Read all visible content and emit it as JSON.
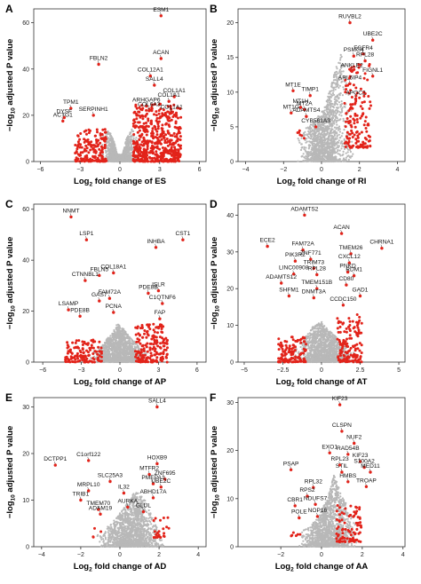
{
  "figure": {
    "shared_ylabel_prefix": "−log",
    "shared_ylabel_sub": "10",
    "shared_ylabel_suffix": " adjusted P value"
  },
  "chart_data": [
    {
      "type": "scatter",
      "panel_letter": "A",
      "xlabel_prefix": "Log",
      "xlabel_sub": "2",
      "xlabel_suffix": " fold change of ES",
      "xlim": [
        -6.5,
        6.5
      ],
      "ylim": [
        0,
        66
      ],
      "xticks": [
        -6,
        -3,
        0,
        3,
        6
      ],
      "yticks": [
        0,
        20,
        40,
        60
      ],
      "grey_cloud": [
        [
          -1.6,
          9
        ],
        [
          -0.9,
          14
        ],
        [
          -0.5,
          10
        ],
        [
          -0.2,
          3
        ],
        [
          0.2,
          3
        ],
        [
          0.5,
          10
        ],
        [
          0.9,
          14
        ],
        [
          1.6,
          9
        ]
      ],
      "red_regions": [
        {
          "x": [
            -3.4,
            -1.0
          ],
          "y": [
            0,
            14
          ],
          "n": 170
        },
        {
          "x": [
            1.0,
            4.6
          ],
          "y": [
            0,
            25
          ],
          "n": 520
        }
      ],
      "labels": [
        {
          "text": "ESM1",
          "x": 3.1,
          "y": 63
        },
        {
          "text": "ACAN",
          "x": 3.1,
          "y": 44.5
        },
        {
          "text": "FBLN2",
          "x": -1.6,
          "y": 42
        },
        {
          "text": "COL12A1",
          "x": 2.3,
          "y": 37
        },
        {
          "text": "SALL4",
          "x": 2.6,
          "y": 33
        },
        {
          "text": "COL1A1",
          "x": 4.1,
          "y": 28
        },
        {
          "text": "COL1A1",
          "x": 3.7,
          "y": 26
        },
        {
          "text": "ARHGAP6",
          "x": 2.0,
          "y": 24
        },
        {
          "text": "TPM1",
          "x": -3.7,
          "y": 23
        },
        {
          "text": "COL6A3",
          "x": 2.2,
          "y": 22
        },
        {
          "text": "COL1A1",
          "x": 3.9,
          "y": 21
        },
        {
          "text": "SERPINH1",
          "x": -2.0,
          "y": 20
        },
        {
          "text": "DYSF",
          "x": -4.2,
          "y": 19
        },
        {
          "text": "ACTG1",
          "x": -4.3,
          "y": 17.5
        }
      ]
    },
    {
      "type": "scatter",
      "panel_letter": "B",
      "xlabel_prefix": "Log",
      "xlabel_sub": "2",
      "xlabel_suffix": " fold change of RI",
      "xlim": [
        -4.4,
        4.4
      ],
      "ylim": [
        0,
        22
      ],
      "xticks": [
        -4,
        -2,
        0,
        2,
        4
      ],
      "yticks": [
        0,
        5,
        10,
        15,
        20
      ],
      "grey_cloud": [
        [
          -1.4,
          3
        ],
        [
          -0.8,
          5
        ],
        [
          -0.3,
          6
        ],
        [
          0.2,
          8
        ],
        [
          0.6,
          12
        ],
        [
          1.0,
          16
        ],
        [
          1.4,
          12
        ],
        [
          1.8,
          6
        ]
      ],
      "red_regions": [
        {
          "x": [
            1.2,
            2.6
          ],
          "y": [
            2,
            14
          ],
          "n": 150
        },
        {
          "x": [
            -1.4,
            -0.9
          ],
          "y": [
            3,
            4.5
          ],
          "n": 6
        }
      ],
      "labels": [
        {
          "text": "RUVBL2",
          "x": 1.5,
          "y": 20
        },
        {
          "text": "UBE2C",
          "x": 2.7,
          "y": 17.5
        },
        {
          "text": "FGFR4",
          "x": 2.2,
          "y": 15.5
        },
        {
          "text": "PSMG4",
          "x": 1.7,
          "y": 15.2
        },
        {
          "text": "RPL28",
          "x": 2.3,
          "y": 14.5
        },
        {
          "text": "ANKLE2",
          "x": 1.6,
          "y": 13
        },
        {
          "text": "FIGNL1",
          "x": 2.7,
          "y": 12.3
        },
        {
          "text": "ARL6IP4",
          "x": 1.5,
          "y": 11.2
        },
        {
          "text": "MT1E",
          "x": -1.5,
          "y": 10.2
        },
        {
          "text": "TIMP1",
          "x": -0.6,
          "y": 9.5
        },
        {
          "text": "APOC2",
          "x": 1.8,
          "y": 9
        },
        {
          "text": "MT1H",
          "x": -1.1,
          "y": 7.8
        },
        {
          "text": "MT2A",
          "x": -0.9,
          "y": 7.5
        },
        {
          "text": "MT1G",
          "x": -1.6,
          "y": 7
        },
        {
          "text": "ADAMTS4",
          "x": -0.8,
          "y": 6.5
        },
        {
          "text": "CYB561A3",
          "x": -0.3,
          "y": 5
        }
      ]
    },
    {
      "type": "scatter",
      "panel_letter": "C",
      "xlabel_prefix": "Log",
      "xlabel_sub": "2",
      "xlabel_suffix": " fold change of AP",
      "xlim": [
        -6.7,
        6.7
      ],
      "ylim": [
        0,
        62
      ],
      "xticks": [
        -6,
        -3,
        0,
        3,
        6
      ],
      "yticks": [
        0,
        20,
        40,
        60
      ],
      "grey_cloud": [
        [
          -2.5,
          3
        ],
        [
          -1.5,
          6
        ],
        [
          -0.7,
          11
        ],
        [
          -0.2,
          15
        ],
        [
          0.3,
          13
        ],
        [
          0.8,
          10
        ],
        [
          1.5,
          6
        ],
        [
          2.5,
          3
        ]
      ],
      "red_regions": [
        {
          "x": [
            -4.3,
            -1.4
          ],
          "y": [
            0,
            9
          ],
          "n": 120
        },
        {
          "x": [
            1.2,
            3.7
          ],
          "y": [
            0,
            15
          ],
          "n": 180
        }
      ],
      "labels": [
        {
          "text": "NNMT",
          "x": -3.8,
          "y": 57
        },
        {
          "text": "LSP1",
          "x": -2.6,
          "y": 48
        },
        {
          "text": "INHBA",
          "x": 2.8,
          "y": 45
        },
        {
          "text": "CST1",
          "x": 4.9,
          "y": 48
        },
        {
          "text": "COL18A1",
          "x": -0.5,
          "y": 35
        },
        {
          "text": "FBLN5",
          "x": -1.6,
          "y": 34
        },
        {
          "text": "CTNNBL1",
          "x": -2.7,
          "y": 32
        },
        {
          "text": "ISLR",
          "x": 3.0,
          "y": 28
        },
        {
          "text": "PDE8B",
          "x": 2.2,
          "y": 27
        },
        {
          "text": "FAM72A",
          "x": -0.8,
          "y": 25
        },
        {
          "text": "GAS7",
          "x": -1.6,
          "y": 24
        },
        {
          "text": "C1QTNF6",
          "x": 3.3,
          "y": 23
        },
        {
          "text": "LSAMP",
          "x": -4.0,
          "y": 20.5
        },
        {
          "text": "PCNA",
          "x": -0.5,
          "y": 19.5
        },
        {
          "text": "PDE8B",
          "x": -3.1,
          "y": 18
        },
        {
          "text": "FAP",
          "x": 3.1,
          "y": 17
        }
      ]
    },
    {
      "type": "scatter",
      "panel_letter": "D",
      "xlabel_prefix": "Log",
      "xlabel_sub": "2",
      "xlabel_suffix": " fold change of AT",
      "xlim": [
        -5.4,
        5.4
      ],
      "ylim": [
        0,
        43
      ],
      "xticks": [
        -5.0,
        -2.5,
        0.0,
        2.5,
        5.0
      ],
      "ytick_labels": [
        "0",
        "10",
        "20",
        "30",
        "40"
      ],
      "yticks": [
        0,
        10,
        20,
        30,
        40
      ],
      "grey_cloud": [
        [
          -2.0,
          3
        ],
        [
          -1.2,
          6
        ],
        [
          -0.5,
          10
        ],
        [
          0.0,
          11
        ],
        [
          0.4,
          9
        ],
        [
          0.9,
          7
        ],
        [
          1.6,
          4
        ],
        [
          2.3,
          2
        ]
      ],
      "red_regions": [
        {
          "x": [
            -2.8,
            -1.0
          ],
          "y": [
            0,
            7
          ],
          "n": 120
        },
        {
          "x": [
            1.0,
            2.6
          ],
          "y": [
            0,
            13
          ],
          "n": 140
        }
      ],
      "labels": [
        {
          "text": "ADAMTS2",
          "x": -1.1,
          "y": 40
        },
        {
          "text": "ACAN",
          "x": 1.3,
          "y": 35
        },
        {
          "text": "CHRNA1",
          "x": 3.9,
          "y": 31
        },
        {
          "text": "ECE2",
          "x": -3.5,
          "y": 31.5
        },
        {
          "text": "FAM72A",
          "x": -1.2,
          "y": 30.5
        },
        {
          "text": "TMEM26",
          "x": 1.9,
          "y": 29.5
        },
        {
          "text": "PIK3R2",
          "x": -1.7,
          "y": 27.5
        },
        {
          "text": "ZNF771",
          "x": -0.7,
          "y": 28
        },
        {
          "text": "CXCL12",
          "x": 1.8,
          "y": 27
        },
        {
          "text": "TRIM73",
          "x": -0.5,
          "y": 25.5
        },
        {
          "text": "PNKD",
          "x": 1.7,
          "y": 24.5
        },
        {
          "text": "LINC00908",
          "x": -1.8,
          "y": 24
        },
        {
          "text": "RPL28",
          "x": -0.3,
          "y": 23.8
        },
        {
          "text": "RDM1",
          "x": 2.1,
          "y": 23.5
        },
        {
          "text": "ADAMTS12",
          "x": -2.6,
          "y": 21.5
        },
        {
          "text": "TMEM151B",
          "x": -0.3,
          "y": 20
        },
        {
          "text": "CD80",
          "x": 1.6,
          "y": 21
        },
        {
          "text": "SHFM1",
          "x": -2.1,
          "y": 18
        },
        {
          "text": "DNMT3A",
          "x": -0.5,
          "y": 17.5
        },
        {
          "text": "GAD1",
          "x": 2.5,
          "y": 18
        },
        {
          "text": "CCDC150",
          "x": 1.4,
          "y": 15.5
        }
      ]
    },
    {
      "type": "scatter",
      "panel_letter": "E",
      "xlabel_prefix": "Log",
      "xlabel_sub": "2",
      "xlabel_suffix": " fold change of AD",
      "xlim": [
        -4.4,
        4.4
      ],
      "ylim": [
        0,
        32
      ],
      "xticks": [
        -4,
        -2,
        0,
        2,
        4
      ],
      "yticks": [
        0,
        10,
        20,
        30
      ],
      "grey_cloud": [
        [
          -1.3,
          2
        ],
        [
          -0.7,
          4
        ],
        [
          -0.2,
          6
        ],
        [
          0.3,
          9
        ],
        [
          0.8,
          12
        ],
        [
          1.3,
          10
        ],
        [
          1.8,
          5
        ],
        [
          2.4,
          2
        ]
      ],
      "red_regions": [
        {
          "x": [
            1.7,
            2.5
          ],
          "y": [
            2,
            7
          ],
          "n": 22
        },
        {
          "x": [
            -1.4,
            -0.8
          ],
          "y": [
            2,
            4
          ],
          "n": 4
        }
      ],
      "labels": [
        {
          "text": "SALL4",
          "x": 1.9,
          "y": 30
        },
        {
          "text": "HOXB9",
          "x": 1.9,
          "y": 17.8
        },
        {
          "text": "DCTPP1",
          "x": -3.3,
          "y": 17.5
        },
        {
          "text": "C1orf122",
          "x": -1.6,
          "y": 18.5
        },
        {
          "text": "MTFR2",
          "x": 1.5,
          "y": 15.5
        },
        {
          "text": "ZNF695",
          "x": 2.3,
          "y": 14.5
        },
        {
          "text": "SLC25A3",
          "x": -0.5,
          "y": 14
        },
        {
          "text": "PMEPA1",
          "x": 1.7,
          "y": 13.5
        },
        {
          "text": "UBE2C",
          "x": 2.1,
          "y": 12.8
        },
        {
          "text": "MRPL10",
          "x": -1.6,
          "y": 12
        },
        {
          "text": "IL32",
          "x": 0.2,
          "y": 11.5
        },
        {
          "text": "ABHD17A",
          "x": 1.7,
          "y": 10.5
        },
        {
          "text": "TRIB1",
          "x": -2.0,
          "y": 10
        },
        {
          "text": "AURKA",
          "x": 0.4,
          "y": 8.5
        },
        {
          "text": "TMEM70",
          "x": -1.1,
          "y": 8
        },
        {
          "text": "GLUL",
          "x": 1.2,
          "y": 7.5
        },
        {
          "text": "ADAM19",
          "x": -1.0,
          "y": 7
        }
      ]
    },
    {
      "type": "scatter",
      "panel_letter": "F",
      "xlabel_prefix": "Log",
      "xlabel_sub": "2",
      "xlabel_suffix": " fold change of AA",
      "xlim": [
        -4.1,
        4.1
      ],
      "ylim": [
        0,
        31
      ],
      "xticks": [
        -2,
        0,
        2,
        4
      ],
      "yticks": [
        0,
        10,
        20,
        30
      ],
      "grey_cloud": [
        [
          -1.3,
          2
        ],
        [
          -0.7,
          4
        ],
        [
          -0.2,
          6
        ],
        [
          0.3,
          10
        ],
        [
          0.6,
          15
        ],
        [
          0.9,
          12
        ],
        [
          1.4,
          7
        ],
        [
          2.0,
          3
        ]
      ],
      "red_regions": [
        {
          "x": [
            0.7,
            2.0
          ],
          "y": [
            1,
            9
          ],
          "n": 90
        },
        {
          "x": [
            -1.6,
            -1.0
          ],
          "y": [
            2,
            4
          ],
          "n": 6
        }
      ],
      "labels": [
        {
          "text": "KIF23",
          "x": 0.9,
          "y": 29.5
        },
        {
          "text": "CLSPN",
          "x": 1.0,
          "y": 24
        },
        {
          "text": "NUF2",
          "x": 1.6,
          "y": 21.5
        },
        {
          "text": "EXO1",
          "x": 0.4,
          "y": 19.5
        },
        {
          "text": "RAD54B",
          "x": 1.3,
          "y": 19.2
        },
        {
          "text": "KIF23",
          "x": 1.9,
          "y": 17.7
        },
        {
          "text": "STIL",
          "x": 1.0,
          "y": 15.5
        },
        {
          "text": "RPL23",
          "x": 0.9,
          "y": 17
        },
        {
          "text": "S100A2",
          "x": 2.1,
          "y": 16.5
        },
        {
          "text": "MED11",
          "x": 2.4,
          "y": 15.5
        },
        {
          "text": "PSAP",
          "x": -1.5,
          "y": 16
        },
        {
          "text": "HMBS",
          "x": 1.3,
          "y": 13.5
        },
        {
          "text": "TROAP",
          "x": 2.2,
          "y": 12.5
        },
        {
          "text": "RPL32",
          "x": -0.4,
          "y": 12.3
        },
        {
          "text": "RPS2",
          "x": -0.7,
          "y": 10.5
        },
        {
          "text": "CBR1",
          "x": -1.3,
          "y": 8.5
        },
        {
          "text": "NDUFS7",
          "x": -0.3,
          "y": 8.8
        },
        {
          "text": "POLE",
          "x": -1.1,
          "y": 6
        },
        {
          "text": "NOP16",
          "x": -0.2,
          "y": 6.3
        }
      ]
    }
  ]
}
